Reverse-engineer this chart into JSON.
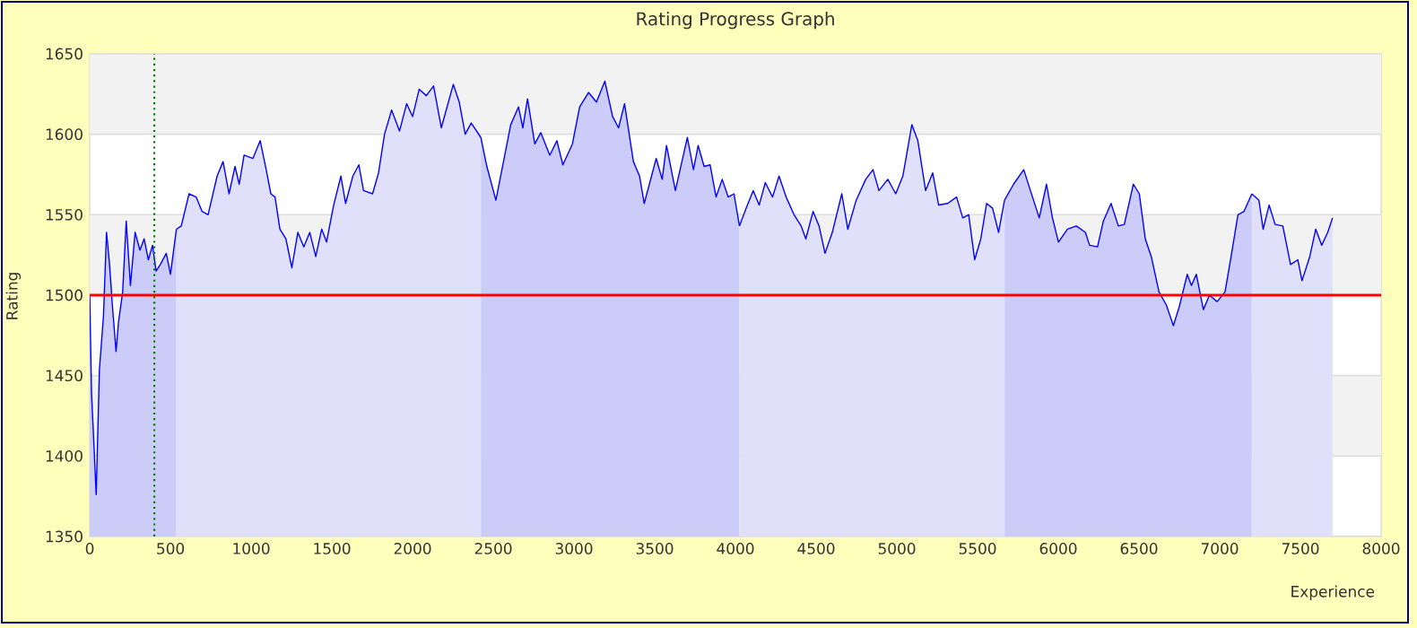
{
  "chart_data": {
    "type": "area",
    "title": "Rating Progress Graph",
    "xlabel": "Experience",
    "ylabel": "Rating",
    "color": "#0000ff",
    "xlim": [
      0,
      8000
    ],
    "ylim": [
      1350,
      1650
    ],
    "xticks": [
      0,
      500,
      1000,
      1500,
      2000,
      2500,
      3000,
      3500,
      4000,
      4500,
      5000,
      5500,
      6000,
      6500,
      7000,
      7500,
      8000
    ],
    "yticks": [
      1350,
      1400,
      1450,
      1500,
      1550,
      1600,
      1650
    ],
    "grid": "y",
    "bands": [
      {
        "axis": "y",
        "from": 1400,
        "to": 1450,
        "color": "#f2f2f2"
      },
      {
        "axis": "y",
        "from": 1500,
        "to": 1550,
        "color": "#f2f2f2"
      },
      {
        "axis": "y",
        "from": 1600,
        "to": 1650,
        "color": "#f2f2f2"
      }
    ],
    "ref_lines": [
      {
        "axis": "y",
        "value": 1500,
        "color": "#ff0000",
        "line_style": "solid"
      },
      {
        "axis": "x",
        "value": 400,
        "color": "#008000",
        "line_style": "dotted"
      }
    ],
    "series": [
      {
        "color": "#ccccf8",
        "x": [
          0,
          11,
          20,
          40,
          60,
          85,
          104,
          122,
          140,
          163,
          178,
          204,
          226,
          252,
          281,
          311,
          337,
          363,
          389,
          411,
          437,
          474,
          500,
          537
        ],
        "values": [
          1500,
          1439,
          1420,
          1376,
          1454,
          1487,
          1539,
          1520,
          1494,
          1465,
          1483,
          1502,
          1546,
          1506,
          1539,
          1528,
          1535,
          1522,
          1531,
          1515,
          1519,
          1526,
          1513,
          1541
        ]
      },
      {
        "color": "#e0e0fa",
        "x": [
          537,
          567,
          615,
          659,
          696,
          733,
          789,
          826,
          863,
          900,
          926,
          956,
          1011,
          1056,
          1093,
          1122,
          1148,
          1178,
          1215,
          1252,
          1289,
          1326,
          1363,
          1400,
          1437,
          1467,
          1511,
          1556,
          1585,
          1630,
          1667,
          1696,
          1752,
          1789,
          1826,
          1870,
          1919,
          1963,
          2000,
          2041,
          2085,
          2130,
          2178,
          2252,
          2289,
          2326,
          2363,
          2423
        ],
        "values": [
          1541,
          1543,
          1563,
          1561,
          1552,
          1550,
          1574,
          1583,
          1563,
          1580,
          1569,
          1587,
          1585,
          1596,
          1578,
          1563,
          1561,
          1541,
          1535,
          1517,
          1539,
          1530,
          1539,
          1524,
          1541,
          1533,
          1556,
          1574,
          1557,
          1574,
          1581,
          1565,
          1563,
          1576,
          1600,
          1615,
          1602,
          1619,
          1611,
          1628,
          1624,
          1630,
          1604,
          1631,
          1620,
          1600,
          1607,
          1598
        ]
      },
      {
        "color": "#ccccf8",
        "x": [
          2423,
          2460,
          2516,
          2571,
          2608,
          2656,
          2683,
          2712,
          2757,
          2794,
          2850,
          2894,
          2931,
          2990,
          3035,
          3090,
          3139,
          3191,
          3239,
          3276,
          3313,
          3368,
          3406,
          3435,
          3509,
          3546,
          3573,
          3628,
          3702,
          3740,
          3769,
          3806,
          3843,
          3880,
          3918,
          3955,
          3991,
          4025
        ],
        "values": [
          1598,
          1580,
          1559,
          1587,
          1606,
          1617,
          1604,
          1622,
          1594,
          1601,
          1587,
          1596,
          1581,
          1594,
          1617,
          1626,
          1620,
          1633,
          1611,
          1604,
          1619,
          1583,
          1574,
          1557,
          1585,
          1572,
          1593,
          1565,
          1598,
          1578,
          1593,
          1580,
          1581,
          1561,
          1572,
          1561,
          1563,
          1543
        ]
      },
      {
        "color": "#e0e0fa",
        "x": [
          4025,
          4066,
          4110,
          4147,
          4185,
          4230,
          4270,
          4314,
          4363,
          4407,
          4436,
          4481,
          4518,
          4555,
          4600,
          4659,
          4696,
          4748,
          4807,
          4852,
          4889,
          4944,
          4993,
          5037,
          5093,
          5130,
          5178,
          5222,
          5259,
          5315,
          5370,
          5408,
          5445,
          5482,
          5520,
          5556,
          5593,
          5630,
          5667
        ],
        "values": [
          1543,
          1554,
          1565,
          1556,
          1570,
          1561,
          1574,
          1561,
          1550,
          1543,
          1535,
          1552,
          1543,
          1526,
          1539,
          1563,
          1541,
          1559,
          1572,
          1578,
          1565,
          1572,
          1563,
          1574,
          1606,
          1596,
          1565,
          1576,
          1556,
          1557,
          1561,
          1548,
          1550,
          1522,
          1535,
          1557,
          1554,
          1539,
          1559
        ]
      },
      {
        "color": "#ccccf8",
        "x": [
          5667,
          5723,
          5786,
          5834,
          5882,
          5927,
          5964,
          6001,
          6057,
          6112,
          6168,
          6194,
          6243,
          6279,
          6327,
          6372,
          6409,
          6465,
          6502,
          6539,
          6576,
          6624,
          6669,
          6713,
          6750,
          6799,
          6825,
          6855,
          6899,
          6936,
          6984,
          7033,
          7077,
          7113,
          7150,
          7199
        ],
        "values": [
          1559,
          1569,
          1578,
          1563,
          1548,
          1569,
          1548,
          1533,
          1541,
          1543,
          1539,
          1531,
          1530,
          1546,
          1557,
          1543,
          1544,
          1569,
          1563,
          1535,
          1524,
          1502,
          1494,
          1481,
          1493,
          1513,
          1506,
          1513,
          1491,
          1500,
          1496,
          1502,
          1528,
          1550,
          1552,
          1563
        ]
      },
      {
        "color": "#e0e0fa",
        "x": [
          7199,
          7243,
          7269,
          7306,
          7343,
          7391,
          7439,
          7484,
          7510,
          7558,
          7595,
          7632,
          7669,
          7699
        ],
        "values": [
          1563,
          1559,
          1541,
          1556,
          1544,
          1543,
          1519,
          1522,
          1509,
          1524,
          1541,
          1531,
          1539,
          1548
        ]
      }
    ]
  }
}
